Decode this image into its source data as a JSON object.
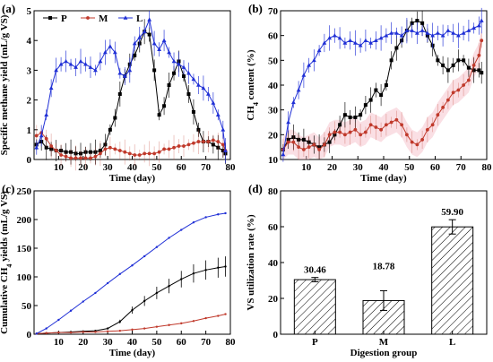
{
  "colors": {
    "P": "#000000",
    "M": "#c0392b",
    "L": "#1f2fd6",
    "M_band": "#f5b8c4"
  },
  "chart_data": [
    {
      "panel": "(a)",
      "type": "line",
      "xlabel": "Time (day)",
      "ylabel": "Specific methane yield (mL/g VS)",
      "xlim": [
        0,
        80
      ],
      "ylim": [
        0,
        5
      ],
      "xticks": [
        10,
        20,
        30,
        40,
        50,
        60,
        70,
        80
      ],
      "yticks": [
        0,
        1,
        2,
        3,
        4,
        5
      ],
      "legend": "top-left",
      "series": [
        {
          "name": "P",
          "marker": "square",
          "x": [
            1,
            3,
            5,
            7,
            9,
            11,
            13,
            15,
            17,
            19,
            21,
            23,
            25,
            27,
            29,
            31,
            33,
            35,
            37,
            39,
            41,
            43,
            45,
            47,
            49,
            51,
            53,
            55,
            57,
            59,
            61,
            63,
            65,
            67,
            69,
            71,
            73,
            75,
            77,
            78
          ],
          "y": [
            0.5,
            0.6,
            0.4,
            0.35,
            0.3,
            0.3,
            0.25,
            0.25,
            0.2,
            0.2,
            0.25,
            0.25,
            0.25,
            0.3,
            0.5,
            1.0,
            1.4,
            2.2,
            2.8,
            3.2,
            3.5,
            3.9,
            4.3,
            4.2,
            3.0,
            1.5,
            1.8,
            2.5,
            2.9,
            3.3,
            2.8,
            2.2,
            1.6,
            1.0,
            0.6,
            0.6,
            0.5,
            0.4,
            0.3,
            0.2
          ]
        },
        {
          "name": "M",
          "marker": "circle",
          "x": [
            1,
            3,
            5,
            7,
            9,
            11,
            13,
            15,
            17,
            19,
            21,
            23,
            25,
            27,
            29,
            31,
            33,
            35,
            37,
            39,
            41,
            43,
            45,
            47,
            49,
            51,
            53,
            55,
            57,
            59,
            61,
            63,
            65,
            67,
            69,
            71,
            73,
            75,
            77,
            78
          ],
          "y": [
            0.8,
            0.9,
            0.7,
            0.45,
            0.3,
            0.15,
            0.1,
            0.05,
            0.05,
            0.05,
            0.05,
            0.05,
            0.1,
            0.2,
            0.35,
            0.4,
            0.35,
            0.3,
            0.25,
            0.2,
            0.15,
            0.15,
            0.2,
            0.2,
            0.2,
            0.25,
            0.35,
            0.35,
            0.4,
            0.45,
            0.45,
            0.5,
            0.55,
            0.6,
            0.6,
            0.6,
            0.65,
            0.6,
            0.5,
            0.3
          ]
        },
        {
          "name": "L",
          "marker": "triangle",
          "x": [
            1,
            3,
            5,
            7,
            9,
            11,
            13,
            15,
            17,
            19,
            21,
            23,
            25,
            27,
            29,
            31,
            33,
            35,
            37,
            39,
            41,
            43,
            45,
            47,
            49,
            51,
            53,
            55,
            57,
            59,
            61,
            63,
            65,
            67,
            69,
            71,
            73,
            75,
            77,
            78
          ],
          "y": [
            0.4,
            0.8,
            1.5,
            2.4,
            3.0,
            3.2,
            3.3,
            3.2,
            3.1,
            3.3,
            3.2,
            3.1,
            3.0,
            3.3,
            3.6,
            3.8,
            3.6,
            2.9,
            2.8,
            3.0,
            3.9,
            4.1,
            4.3,
            4.7,
            3.9,
            3.7,
            4.0,
            3.6,
            3.3,
            3.2,
            3.1,
            2.9,
            2.7,
            2.5,
            2.4,
            2.2,
            1.9,
            1.5,
            1.0,
            0.3
          ]
        }
      ]
    },
    {
      "panel": "(b)",
      "type": "line",
      "xlabel": "Time (day)",
      "ylabel": "CH4 content (%)",
      "xlim": [
        0,
        80
      ],
      "ylim": [
        10,
        70
      ],
      "xticks": [
        10,
        20,
        30,
        40,
        50,
        60,
        70,
        80
      ],
      "yticks": [
        10,
        20,
        30,
        40,
        50,
        60,
        70
      ],
      "series": [
        {
          "name": "P",
          "marker": "square",
          "x": [
            1,
            3,
            5,
            7,
            9,
            11,
            13,
            15,
            17,
            19,
            21,
            23,
            25,
            27,
            29,
            31,
            33,
            35,
            37,
            39,
            41,
            43,
            45,
            47,
            49,
            51,
            53,
            55,
            57,
            59,
            61,
            63,
            65,
            67,
            69,
            71,
            73,
            75,
            77,
            78
          ],
          "y": [
            14,
            18,
            19,
            18,
            18,
            17,
            16,
            15,
            16,
            17,
            20,
            24,
            28,
            27,
            27,
            28,
            32,
            34,
            38,
            36,
            40,
            50,
            55,
            58,
            62,
            65,
            66,
            65,
            60,
            56,
            50,
            48,
            46,
            48,
            50,
            50,
            47,
            46,
            46,
            45
          ]
        },
        {
          "name": "M",
          "marker": "circle",
          "x": [
            1,
            3,
            5,
            7,
            9,
            11,
            13,
            15,
            17,
            19,
            21,
            23,
            25,
            27,
            29,
            31,
            33,
            35,
            37,
            39,
            41,
            43,
            45,
            47,
            49,
            51,
            53,
            55,
            57,
            59,
            61,
            63,
            65,
            67,
            69,
            71,
            73,
            75,
            77,
            78
          ],
          "y": [
            14,
            17,
            17,
            15,
            14,
            15,
            16,
            14,
            16,
            20,
            21,
            21,
            20,
            21,
            22,
            20,
            21,
            24,
            23,
            22,
            24,
            25,
            26,
            24,
            20,
            17,
            16,
            18,
            22,
            24,
            28,
            31,
            34,
            37,
            38,
            40,
            42,
            48,
            52,
            58
          ]
        },
        {
          "name": "L",
          "marker": "triangle",
          "x": [
            1,
            3,
            5,
            7,
            9,
            11,
            13,
            15,
            17,
            19,
            21,
            23,
            25,
            27,
            29,
            31,
            33,
            35,
            37,
            39,
            41,
            43,
            45,
            47,
            49,
            51,
            53,
            55,
            57,
            59,
            61,
            63,
            65,
            67,
            69,
            71,
            73,
            75,
            77,
            78
          ],
          "y": [
            12,
            25,
            33,
            38,
            44,
            48,
            50,
            54,
            57,
            59,
            60,
            59,
            57,
            58,
            57,
            56,
            58,
            57,
            58,
            59,
            60,
            61,
            61,
            60,
            62,
            62,
            61,
            62,
            61,
            60,
            61,
            60,
            62,
            61,
            60,
            61,
            62,
            63,
            64,
            66
          ]
        }
      ]
    },
    {
      "panel": "(c)",
      "type": "line",
      "xlabel": "Time (day)",
      "ylabel": "Cumulative CH4 yields (mL/g VS)",
      "xlim": [
        0,
        80
      ],
      "ylim": [
        0,
        250
      ],
      "xticks": [
        10,
        20,
        30,
        40,
        50,
        60,
        70,
        80
      ],
      "yticks": [
        0,
        50,
        100,
        150,
        200,
        250
      ],
      "series": [
        {
          "name": "P",
          "x": [
            1,
            5,
            10,
            15,
            20,
            25,
            30,
            35,
            40,
            45,
            50,
            55,
            60,
            65,
            70,
            75,
            78
          ],
          "y": [
            1,
            2,
            3,
            4,
            5,
            6,
            10,
            22,
            42,
            58,
            72,
            84,
            96,
            106,
            112,
            116,
            118
          ]
        },
        {
          "name": "M",
          "x": [
            1,
            5,
            10,
            15,
            20,
            25,
            30,
            35,
            40,
            45,
            50,
            55,
            60,
            65,
            70,
            75,
            78
          ],
          "y": [
            1,
            2,
            3,
            3,
            4,
            4,
            5,
            6,
            8,
            10,
            13,
            16,
            19,
            23,
            28,
            32,
            35
          ]
        },
        {
          "name": "L",
          "x": [
            1,
            5,
            10,
            15,
            20,
            25,
            30,
            35,
            40,
            45,
            50,
            55,
            60,
            65,
            70,
            75,
            78
          ],
          "y": [
            1,
            10,
            25,
            41,
            57,
            72,
            89,
            105,
            120,
            136,
            152,
            168,
            182,
            195,
            204,
            209,
            211
          ]
        }
      ]
    },
    {
      "panel": "(d)",
      "type": "bar",
      "xlabel": "Digestion group",
      "ylabel": "VS utilization rate (%)",
      "categories": [
        "P",
        "M",
        "L"
      ],
      "values": [
        30.46,
        18.78,
        59.9
      ],
      "errors": [
        1.2,
        5.5,
        4.0
      ],
      "value_labels": [
        "30.46",
        "18.78",
        "59.90"
      ],
      "ylim": [
        0,
        80
      ],
      "yticks": [
        0,
        20,
        40,
        60,
        80
      ]
    }
  ]
}
